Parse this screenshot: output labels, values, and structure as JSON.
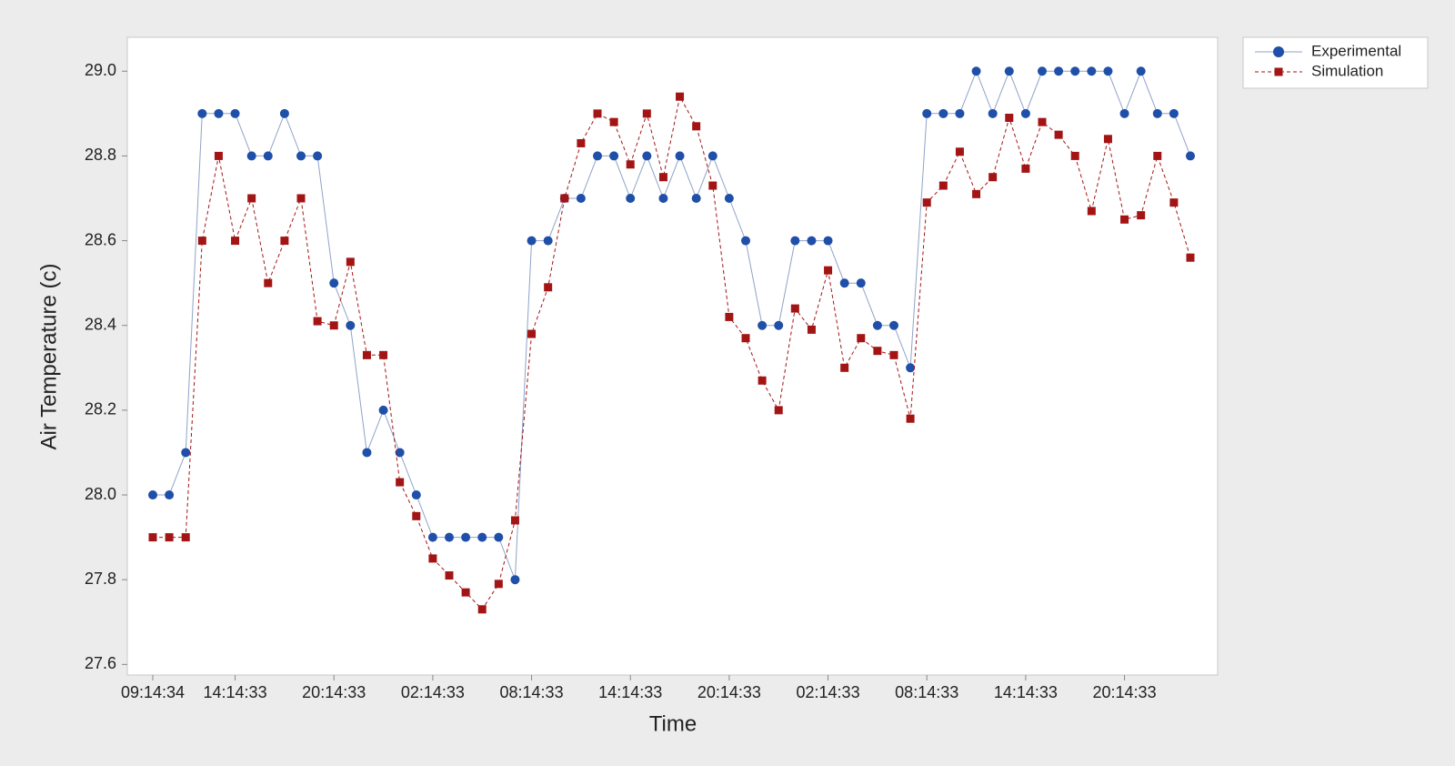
{
  "chart_data": {
    "type": "line",
    "x_label": "Time",
    "y_label": "Air Temperature (c)",
    "categories": [
      "09:14:34",
      null,
      null,
      null,
      null,
      "14:14:33",
      null,
      null,
      null,
      null,
      null,
      "20:14:33",
      null,
      null,
      null,
      null,
      null,
      "02:14:33",
      null,
      null,
      null,
      null,
      null,
      "08:14:33",
      null,
      null,
      null,
      null,
      null,
      "14:14:33",
      null,
      null,
      null,
      null,
      null,
      "20:14:33",
      null,
      null,
      null,
      null,
      null,
      "02:14:33",
      null,
      null,
      null,
      null,
      null,
      "08:14:33",
      null,
      null,
      null,
      null,
      null,
      "14:14:33",
      null,
      null,
      null,
      null,
      null,
      "20:14:33",
      null,
      null,
      null,
      null
    ],
    "series": [
      {
        "name": "Experimental",
        "color": "#1f4fa8",
        "marker": "circle",
        "line_style": "solid",
        "values": [
          28.0,
          28.0,
          28.1,
          28.9,
          28.9,
          28.9,
          28.8,
          28.8,
          28.9,
          28.8,
          28.8,
          28.5,
          28.4,
          28.1,
          28.2,
          28.1,
          28.0,
          27.9,
          27.9,
          27.9,
          27.9,
          27.9,
          27.8,
          28.6,
          28.6,
          28.7,
          28.7,
          28.8,
          28.8,
          28.7,
          28.8,
          28.7,
          28.8,
          28.7,
          28.8,
          28.7,
          28.6,
          28.4,
          28.4,
          28.6,
          28.6,
          28.6,
          28.5,
          28.5,
          28.4,
          28.4,
          28.3,
          28.9,
          28.9,
          28.9,
          29.0,
          28.9,
          29.0,
          28.9,
          29.0,
          29.0,
          29.0,
          29.0,
          29.0,
          28.9,
          29.0,
          28.9,
          28.9,
          28.8
        ]
      },
      {
        "name": "Simulation",
        "color": "#a31515",
        "marker": "square",
        "line_style": "dashed",
        "values": [
          27.9,
          27.9,
          27.9,
          28.6,
          28.8,
          28.6,
          28.7,
          28.5,
          28.6,
          28.7,
          28.41,
          28.4,
          28.55,
          28.33,
          28.33,
          28.03,
          27.95,
          27.85,
          27.81,
          27.77,
          27.73,
          27.79,
          27.94,
          28.38,
          28.49,
          28.7,
          28.83,
          28.9,
          28.88,
          28.78,
          28.9,
          28.75,
          28.94,
          28.87,
          28.73,
          28.42,
          28.37,
          28.27,
          28.2,
          28.44,
          28.39,
          28.53,
          28.3,
          28.37,
          28.34,
          28.33,
          28.18,
          28.69,
          28.73,
          28.81,
          28.71,
          28.75,
          28.89,
          28.77,
          28.88,
          28.85,
          28.8,
          28.67,
          28.84,
          28.65,
          28.66,
          28.8,
          28.69,
          28.56
        ]
      }
    ],
    "ylim": [
      27.575,
      29.08
    ],
    "yticks": [
      27.6,
      27.8,
      {
        "value": 28.0,
        "label": "28.0"
      },
      28.2,
      28.4,
      28.6,
      28.8,
      {
        "value": 29.0,
        "label": "29.0"
      }
    ],
    "grid": false,
    "legend": "outside-top-right"
  }
}
